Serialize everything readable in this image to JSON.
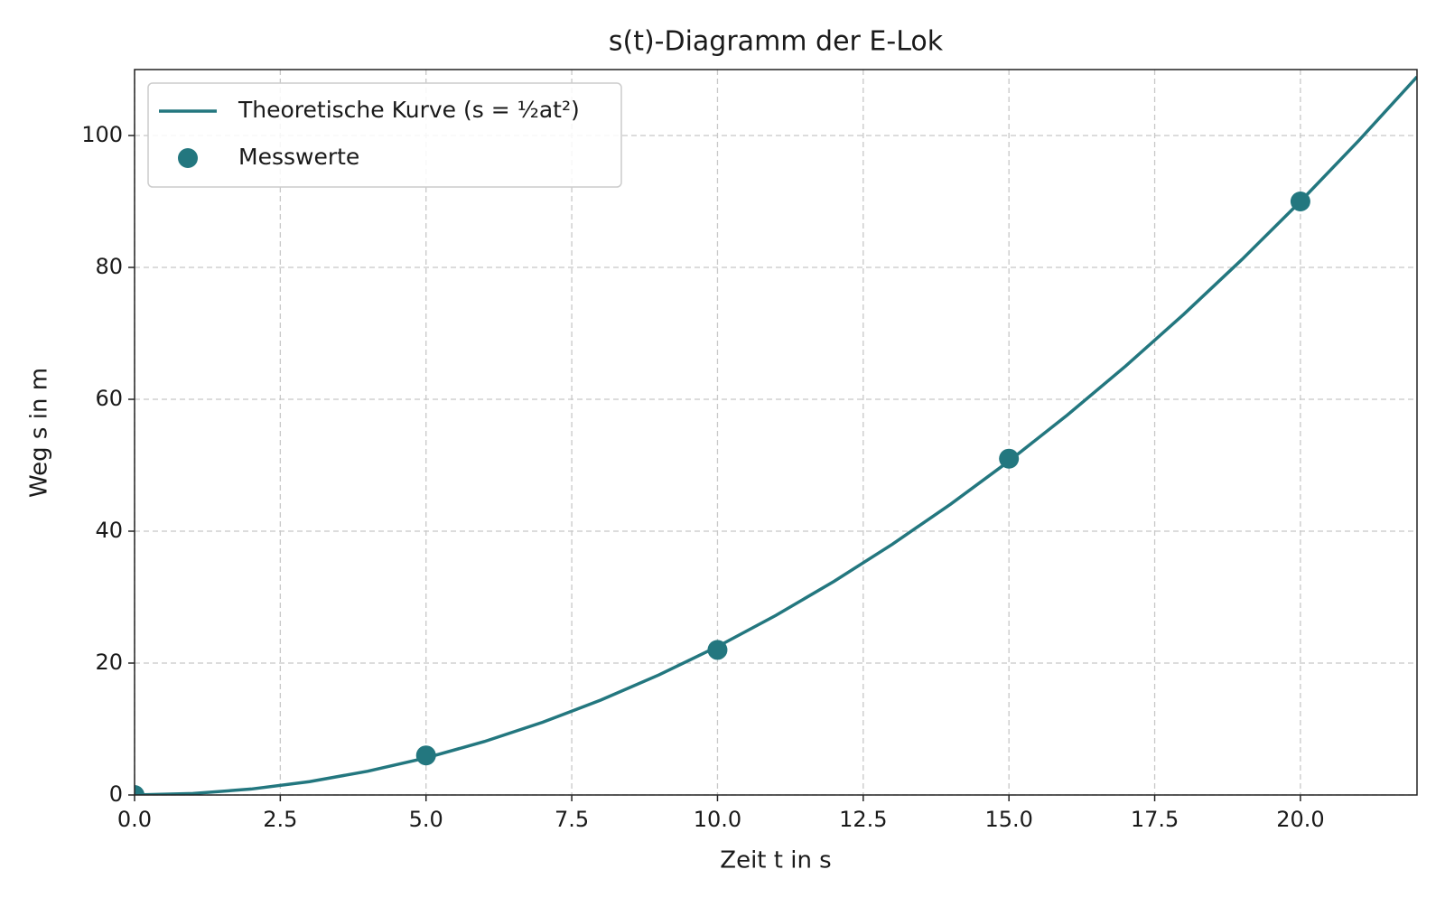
{
  "chart_data": {
    "type": "line",
    "title": "s(t)-Diagramm der E-Lok",
    "x_label": "Zeit t in s",
    "y_label": "Weg s in m",
    "xlim": [
      0,
      22
    ],
    "ylim": [
      0,
      110
    ],
    "xticks": [
      {
        "value": 0,
        "label": "0.0"
      },
      2.5,
      {
        "value": 5,
        "label": "5.0"
      },
      7.5,
      {
        "value": 10,
        "label": "10.0"
      },
      12.5,
      {
        "value": 15,
        "label": "15.0"
      },
      17.5,
      {
        "value": 20,
        "label": "20.0"
      }
    ],
    "yticks": [
      0,
      20,
      40,
      60,
      80,
      100
    ],
    "grid": true,
    "legend": "upper-left",
    "series": [
      {
        "name": "Theoretische Kurve (s = ½at²)",
        "color": "#23777f",
        "type": "line",
        "x": [
          0,
          1,
          2,
          3,
          4,
          5,
          6,
          7,
          8,
          9,
          10,
          11,
          12,
          13,
          14,
          15,
          16,
          17,
          18,
          19,
          20,
          21,
          22
        ],
        "values": [
          0,
          0.225,
          0.9,
          2.025,
          3.6,
          5.625,
          8.1,
          11.025,
          14.4,
          18.225,
          22.5,
          27.225,
          32.4,
          38.025,
          44.1,
          50.625,
          57.6,
          65.025,
          72.9,
          81.225,
          90,
          99.225,
          108.9
        ]
      },
      {
        "name": "Messwerte",
        "color": "#23777f",
        "type": "scatter",
        "x": [
          0,
          5,
          10,
          15,
          20
        ],
        "values": [
          0,
          6,
          22,
          51,
          90
        ]
      }
    ]
  }
}
